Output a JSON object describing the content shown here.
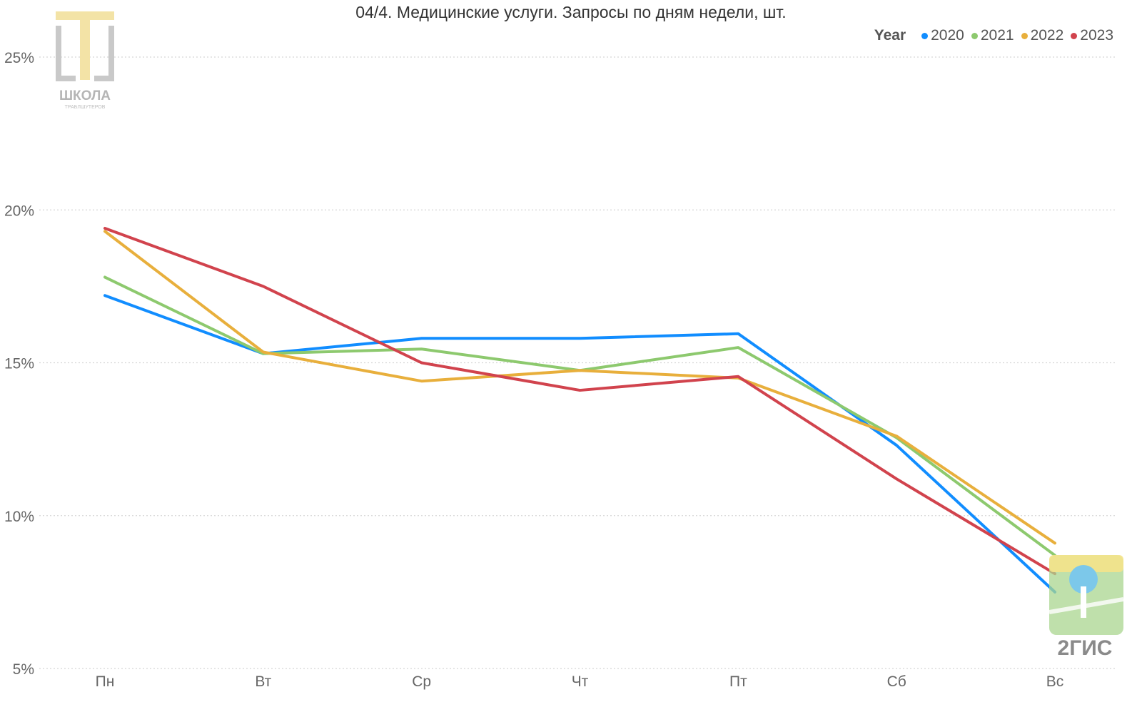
{
  "chart_data": {
    "type": "line",
    "title": "04/4. Медицинские услуги. Запросы по дням недели, шт.",
    "xlabel": "",
    "ylabel": "",
    "categories": [
      "Пн",
      "Вт",
      "Ср",
      "Чт",
      "Пт",
      "Сб",
      "Вс"
    ],
    "yticks": [
      "5%",
      "10%",
      "15%",
      "20%",
      "25%"
    ],
    "ylim": [
      5,
      25.5
    ],
    "grid": true,
    "legend_title": "Year",
    "legend_position": "top-right",
    "series": [
      {
        "name": "2020",
        "color": "#118DFF",
        "values": [
          17.2,
          15.3,
          15.8,
          15.8,
          15.95,
          12.3,
          7.5
        ]
      },
      {
        "name": "2021",
        "color": "#8DC96E",
        "values": [
          17.8,
          15.3,
          15.45,
          14.75,
          15.5,
          12.55,
          8.7
        ]
      },
      {
        "name": "2022",
        "color": "#E8AF3C",
        "values": [
          19.3,
          15.35,
          14.4,
          14.75,
          14.5,
          12.6,
          9.1
        ]
      },
      {
        "name": "2023",
        "color": "#D1434D",
        "values": [
          19.4,
          17.5,
          15.0,
          14.1,
          14.55,
          11.2,
          8.1
        ]
      }
    ]
  },
  "logos": {
    "left_text": "ШКОЛА",
    "left_subtext": "ТРАБЛШУТЕРОВ",
    "right_text": "2ГИС"
  }
}
